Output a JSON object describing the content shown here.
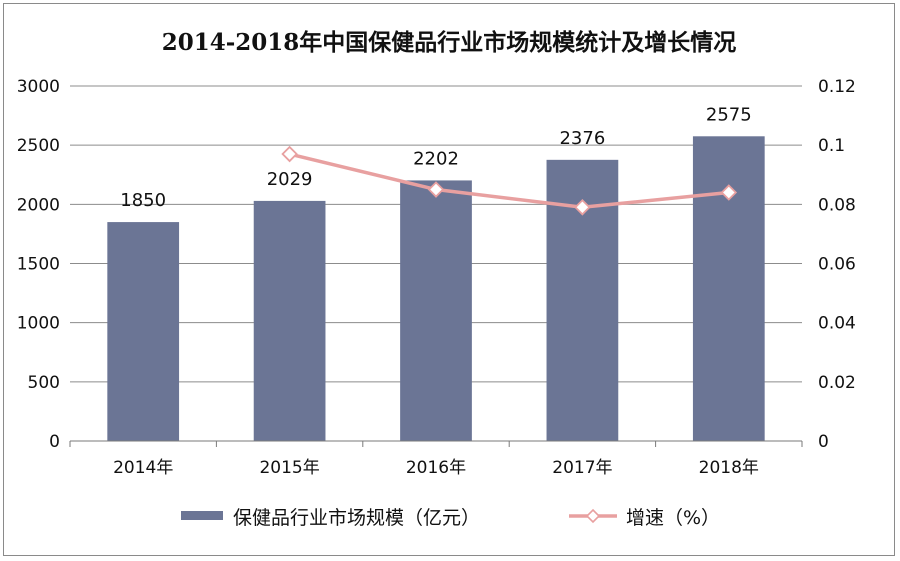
{
  "chart_data": {
    "type": "bar+line",
    "title": "2014-2018年中国保健品行业市场规模统计及增长情况",
    "categories": [
      "2014年",
      "2015年",
      "2016年",
      "2017年",
      "2018年"
    ],
    "series": [
      {
        "name": "保健品行业市场规模（亿元）",
        "type": "bar",
        "axis": "left",
        "color": "#6b7595",
        "values": [
          1850,
          2029,
          2202,
          2376,
          2575
        ],
        "labels": [
          "1850",
          "2029",
          "2202",
          "2376",
          "2575"
        ]
      },
      {
        "name": "增速（%）",
        "type": "line",
        "axis": "right",
        "color": "#e8a0a0",
        "values": [
          null,
          0.097,
          0.085,
          0.079,
          0.084
        ]
      }
    ],
    "y_left": {
      "min": 0,
      "max": 3000,
      "ticks": [
        "0",
        "500",
        "1000",
        "1500",
        "2000",
        "2500",
        "3000"
      ]
    },
    "y_right": {
      "min": 0,
      "max": 0.12,
      "ticks": [
        "0",
        "0.02",
        "0.04",
        "0.06",
        "0.08",
        "0.1",
        "0.12"
      ]
    },
    "grid": true,
    "legend": "bottom"
  }
}
